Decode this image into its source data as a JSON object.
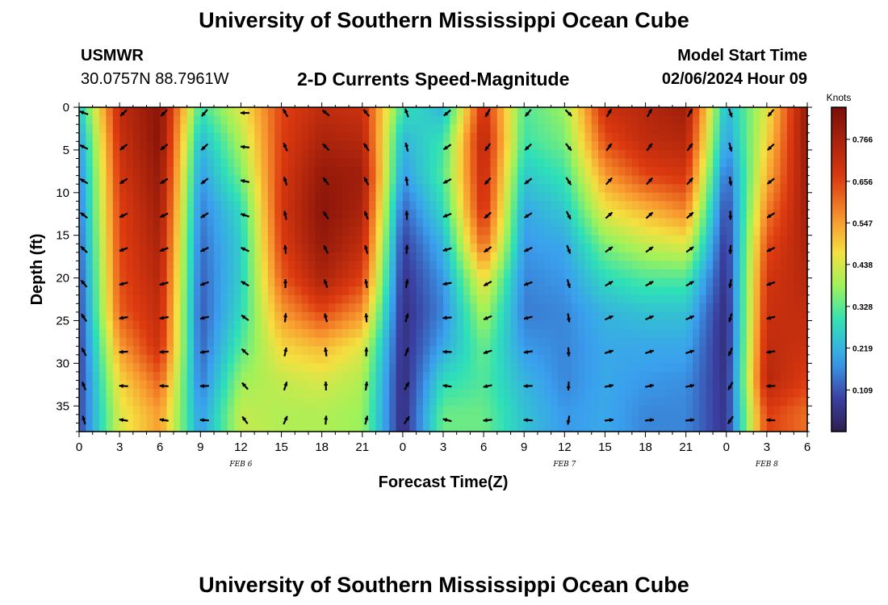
{
  "page": {
    "title_top": "University of Southern Mississippi Ocean Cube",
    "title_bottom": "University of Southern Mississippi Ocean Cube",
    "station_id": "USMWR",
    "coordinates": "30.0757N  88.7961W",
    "plot_title": "2-D Currents Speed-Magnitude",
    "model_label": "Model Start Time",
    "model_time": "02/06/2024 Hour 09"
  },
  "chart_data": {
    "type": "heatmap",
    "title": "2-D Currents Speed-Magnitude",
    "xlabel": "Forecast Time(Z)",
    "ylabel": "Depth (ft)",
    "x_ticks": [
      "0",
      "3",
      "6",
      "9",
      "12",
      "15",
      "18",
      "21",
      "0",
      "3",
      "6",
      "9",
      "12",
      "15",
      "18",
      "21",
      "0",
      "3",
      "6"
    ],
    "x_range_hours": [
      0,
      54
    ],
    "date_labels": [
      {
        "text": "FEB 6",
        "hour": 12
      },
      {
        "text": "FEB 7",
        "hour": 36
      },
      {
        "text": "FEB 8",
        "hour": 51
      }
    ],
    "y_ticks": [
      0,
      5,
      10,
      15,
      20,
      25,
      30,
      35
    ],
    "y_range_ft": [
      0,
      38
    ],
    "colorbar": {
      "unit": "Knots",
      "ticks": [
        "0.766",
        "0.656",
        "0.547",
        "0.438",
        "0.328",
        "0.219",
        "0.109"
      ],
      "range": [
        0,
        0.85
      ]
    },
    "vector_hours": [
      0,
      3,
      6,
      9,
      12,
      15,
      18,
      21,
      24,
      27,
      30,
      33,
      36,
      39,
      42,
      45,
      48,
      51
    ],
    "vector_depths_ft": [
      0,
      4,
      8,
      12,
      16,
      20,
      24,
      28,
      32,
      36
    ],
    "speed_profile": [
      {
        "hour": 0,
        "values": [
          0.25,
          0.18,
          0.15,
          0.14,
          0.12,
          0.1,
          0.09,
          0.08,
          0.08,
          0.09
        ]
      },
      {
        "hour": 3,
        "values": [
          0.72,
          0.7,
          0.68,
          0.66,
          0.65,
          0.64,
          0.62,
          0.55,
          0.48,
          0.44
        ]
      },
      {
        "hour": 6,
        "values": [
          0.82,
          0.82,
          0.8,
          0.78,
          0.76,
          0.74,
          0.72,
          0.7,
          0.62,
          0.55
        ]
      },
      {
        "hour": 9,
        "values": [
          0.3,
          0.22,
          0.18,
          0.15,
          0.13,
          0.12,
          0.11,
          0.12,
          0.14,
          0.18
        ]
      },
      {
        "hour": 12,
        "values": [
          0.45,
          0.4,
          0.35,
          0.28,
          0.26,
          0.26,
          0.28,
          0.32,
          0.38,
          0.42
        ]
      },
      {
        "hour": 15,
        "values": [
          0.65,
          0.66,
          0.67,
          0.68,
          0.66,
          0.62,
          0.55,
          0.48,
          0.42,
          0.4
        ]
      },
      {
        "hour": 18,
        "values": [
          0.72,
          0.76,
          0.8,
          0.82,
          0.8,
          0.76,
          0.65,
          0.52,
          0.44,
          0.4
        ]
      },
      {
        "hour": 21,
        "values": [
          0.7,
          0.74,
          0.78,
          0.76,
          0.72,
          0.66,
          0.56,
          0.45,
          0.4,
          0.38
        ]
      },
      {
        "hour": 24,
        "values": [
          0.3,
          0.22,
          0.18,
          0.12,
          0.08,
          0.06,
          0.05,
          0.05,
          0.04,
          0.04
        ]
      },
      {
        "hour": 27,
        "values": [
          0.22,
          0.3,
          0.32,
          0.28,
          0.22,
          0.18,
          0.16,
          0.2,
          0.28,
          0.34
        ]
      },
      {
        "hour": 30,
        "values": [
          0.7,
          0.74,
          0.72,
          0.7,
          0.62,
          0.48,
          0.4,
          0.34,
          0.32,
          0.34
        ]
      },
      {
        "hour": 33,
        "values": [
          0.32,
          0.3,
          0.25,
          0.2,
          0.18,
          0.16,
          0.15,
          0.18,
          0.22,
          0.24
        ]
      },
      {
        "hour": 36,
        "values": [
          0.38,
          0.35,
          0.3,
          0.25,
          0.2,
          0.18,
          0.16,
          0.16,
          0.16,
          0.18
        ]
      },
      {
        "hour": 39,
        "values": [
          0.7,
          0.64,
          0.55,
          0.46,
          0.36,
          0.28,
          0.22,
          0.2,
          0.2,
          0.2
        ]
      },
      {
        "hour": 42,
        "values": [
          0.74,
          0.72,
          0.65,
          0.52,
          0.42,
          0.32,
          0.24,
          0.2,
          0.18,
          0.16
        ]
      },
      {
        "hour": 45,
        "values": [
          0.78,
          0.74,
          0.68,
          0.58,
          0.45,
          0.32,
          0.24,
          0.2,
          0.17,
          0.16
        ]
      },
      {
        "hour": 48,
        "values": [
          0.22,
          0.18,
          0.12,
          0.08,
          0.06,
          0.05,
          0.04,
          0.04,
          0.05,
          0.06
        ]
      },
      {
        "hour": 51,
        "values": [
          0.45,
          0.48,
          0.52,
          0.58,
          0.64,
          0.68,
          0.7,
          0.72,
          0.74,
          0.66
        ]
      },
      {
        "hour": 54,
        "values": [
          0.8,
          0.8,
          0.79,
          0.78,
          0.76,
          0.74,
          0.72,
          0.7,
          0.66,
          0.6
        ]
      }
    ]
  }
}
